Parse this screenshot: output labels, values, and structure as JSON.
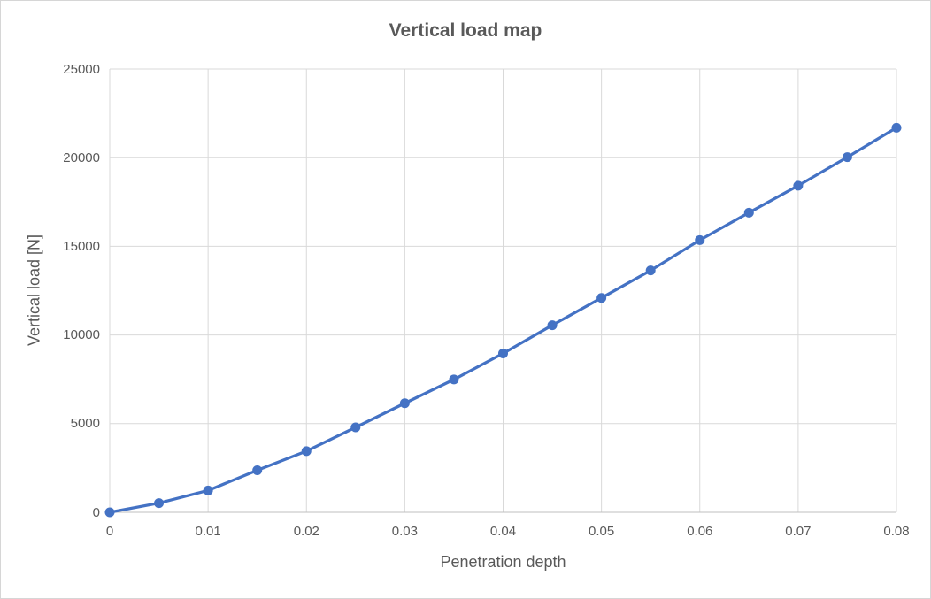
{
  "chart_data": {
    "type": "line",
    "title": "Vertical load map",
    "xlabel": "Penetration depth",
    "ylabel": "Vertical load [N]",
    "x": [
      0,
      0.005,
      0.01,
      0.015,
      0.02,
      0.025,
      0.03,
      0.035,
      0.04,
      0.045,
      0.05,
      0.055,
      0.06,
      0.065,
      0.07,
      0.075,
      0.08
    ],
    "y": [
      0,
      520,
      1230,
      2370,
      3450,
      4790,
      6150,
      7490,
      8960,
      10550,
      12090,
      13640,
      15350,
      16900,
      18420,
      20030,
      21690
    ],
    "xlim": [
      0,
      0.08
    ],
    "ylim": [
      0,
      25000
    ],
    "x_ticks": [
      0,
      0.01,
      0.02,
      0.03,
      0.04,
      0.05,
      0.06,
      0.07,
      0.08
    ],
    "x_tick_labels": [
      "0",
      "0.01",
      "0.02",
      "0.03",
      "0.04",
      "0.05",
      "0.06",
      "0.07",
      "0.08"
    ],
    "y_ticks": [
      0,
      5000,
      10000,
      15000,
      20000,
      25000
    ],
    "y_tick_labels": [
      "0",
      "5000",
      "10000",
      "15000",
      "20000",
      "25000"
    ],
    "grid": true,
    "legend": "none",
    "marker": "circle",
    "colors": {
      "series": "#4472C4",
      "gridline": "#D9D9D9",
      "axis_line": "#BFBFBF",
      "tick_text": "#595959",
      "title_text": "#595959",
      "background": "#FFFFFF"
    }
  }
}
